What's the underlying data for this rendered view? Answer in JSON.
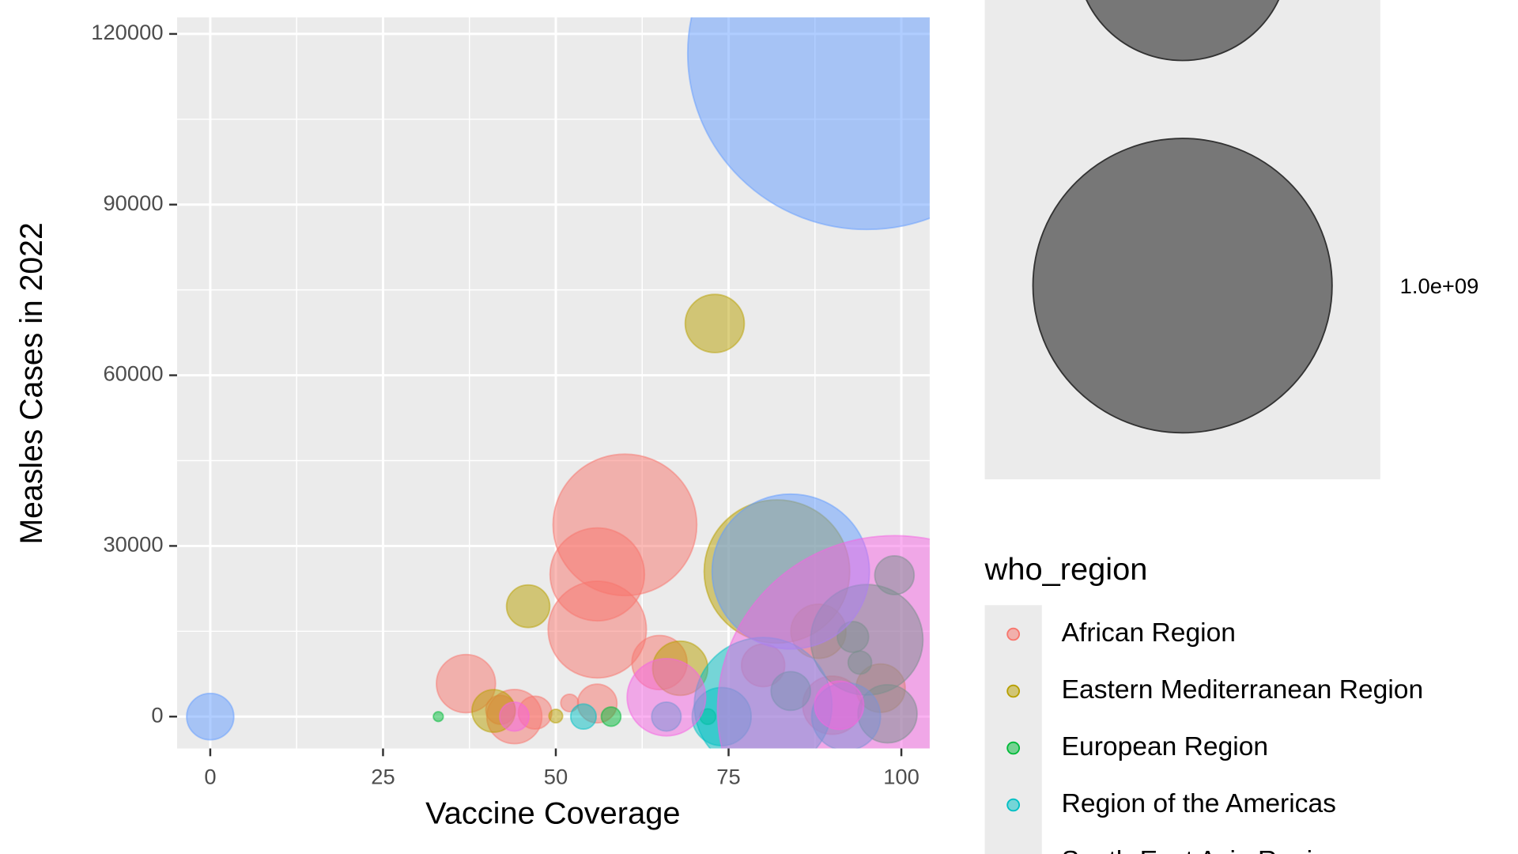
{
  "chart_data": {
    "type": "bubble",
    "x_label": "Vaccine Coverage",
    "y_label": "Measles Cases in 2022",
    "xlim": [
      -4.8,
      104.1
    ],
    "ylim": [
      -5600,
      122900
    ],
    "xticks": [
      0,
      25,
      50,
      75,
      100
    ],
    "yticks": [
      0,
      30000,
      60000,
      90000,
      120000
    ],
    "grid": true,
    "size_legend": [
      500000000,
      {
        "value": 1000000000,
        "label": "1.0e+09"
      }
    ],
    "color_legend_title": "who_region",
    "series": [
      {
        "name": "African Region",
        "color": "#F8766D",
        "x": [
          60,
          56,
          56,
          37,
          44,
          47,
          52,
          56,
          65,
          42,
          90,
          80
        ],
        "values": [
          33700,
          25000,
          15300,
          5800,
          0,
          700,
          2400,
          2300,
          9500,
          1200,
          2000,
          9000
        ],
        "sizes": [
          231000000,
          99700000,
          108000000,
          39000000,
          33900000,
          12500000,
          3500000,
          17300000,
          33900000,
          9700000,
          39000000,
          20900000
        ]
      },
      {
        "name": "Eastern Mediterranean Region",
        "color": "#B79F00",
        "x": [
          73,
          82,
          46,
          41,
          50,
          68,
          88,
          97
        ],
        "values": [
          69100,
          25500,
          19400,
          1000,
          100,
          8500,
          15000,
          5000
        ],
        "sizes": [
          39000000,
          237000000,
          20900000,
          20900000,
          2100000,
          33900000,
          33900000,
          27000000
        ]
      },
      {
        "name": "European Region",
        "color": "#00BA38",
        "x": [
          99,
          33,
          58,
          95,
          93,
          94,
          84,
          98,
          72
        ],
        "values": [
          24850,
          0,
          0,
          13500,
          14000,
          9500,
          4500,
          500,
          0
        ],
        "sizes": [
          17300000,
          1100000,
          4300000,
          141000000,
          11000000,
          6200000,
          17300000,
          39000000,
          2800000
        ]
      },
      {
        "name": "Region of the Americas",
        "color": "#00BFC4",
        "x": [
          54,
          74,
          66,
          92,
          80
        ],
        "values": [
          0,
          0,
          0,
          0,
          2000
        ],
        "sizes": [
          7300000,
          39000000,
          9700000,
          53000000,
          212000000
        ]
      },
      {
        "name": "South-East Asia Region",
        "color": "#619CFF",
        "x": [
          95,
          0,
          84
        ],
        "values": [
          116600,
          0,
          25500
        ],
        "sizes": [
          1434000000,
          24900000,
          277000000
        ]
      },
      {
        "color": "#F564E3",
        "x": [
          99,
          44,
          66,
          91
        ],
        "values": [
          1200,
          0,
          3400,
          2000
        ],
        "sizes": [
          1400000000,
          9700000,
          69000000,
          27000000
        ]
      }
    ]
  }
}
